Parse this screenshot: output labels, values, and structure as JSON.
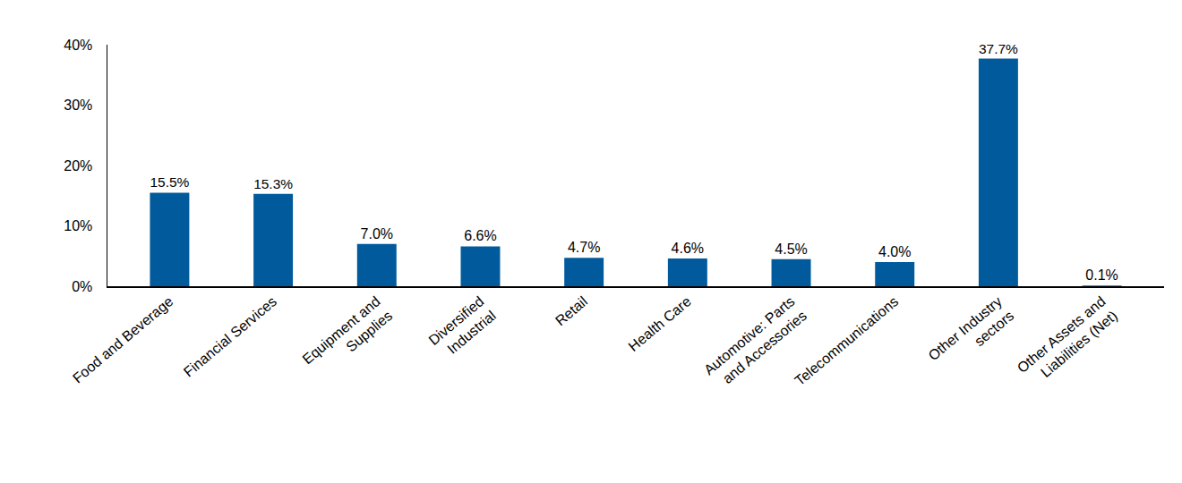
{
  "chart_data": {
    "type": "bar",
    "categories": [
      "Food and Beverage",
      "Financial Services",
      "Equipment and\nSupplies",
      "Diversified\nIndustrial",
      "Retail",
      "Health Care",
      "Automotive: Parts\nand Accessories",
      "Telecommunications",
      "Other Industry\nsectors",
      "Other Assets and\nLiabilities (Net)"
    ],
    "values": [
      15.5,
      15.3,
      7.0,
      6.6,
      4.7,
      4.6,
      4.5,
      4.0,
      37.7,
      0.1
    ],
    "value_labels": [
      "15.5%",
      "15.3%",
      "7.0%",
      "6.6%",
      "4.7%",
      "4.6%",
      "4.5%",
      "4.0%",
      "37.7%",
      "0.1%"
    ],
    "data_labels": true,
    "color": "#005a9c",
    "ylim": [
      0,
      40
    ],
    "yticks": [
      {
        "value": 0,
        "label": "0%"
      },
      {
        "value": 10,
        "label": "10%"
      },
      {
        "value": 20,
        "label": "20%"
      },
      {
        "value": 30,
        "label": "30%"
      },
      {
        "value": 40,
        "label": "40%"
      }
    ],
    "grid": false
  }
}
